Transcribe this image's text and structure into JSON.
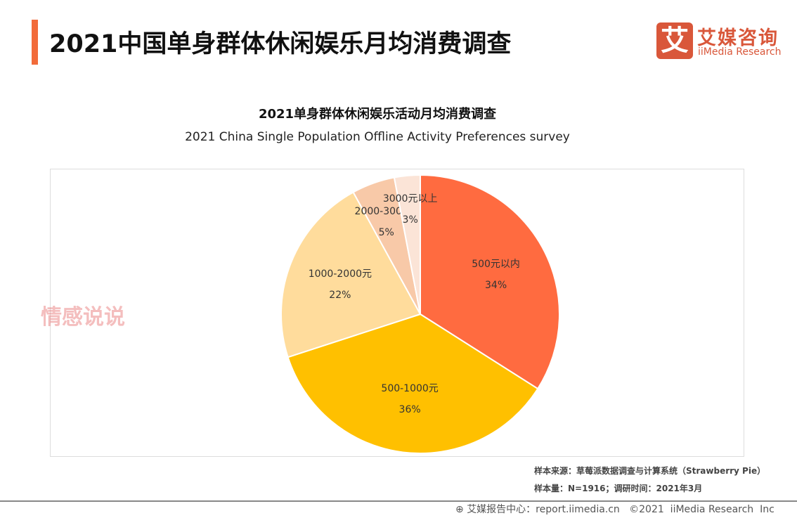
{
  "header": {
    "title": "2021中国单身群体休闲娱乐月均消费调查"
  },
  "logo": {
    "mark": "艾",
    "cn": "艾媒咨询",
    "en": "iiMedia Research",
    "color": "#D9573A"
  },
  "watermark": "情感说说",
  "chart_data": {
    "type": "pie",
    "title": "2021单身群体休闲娱乐活动月均消费调查",
    "subtitle": "2021 China Single Population Offline Activity Preferences survey",
    "slices": [
      {
        "label": "500元以内",
        "value": 34,
        "pct": "34%",
        "color": "#FF6B40"
      },
      {
        "label": "500-1000元",
        "value": 36,
        "pct": "36%",
        "color": "#FFC000"
      },
      {
        "label": "1000-2000元",
        "value": 22,
        "pct": "22%",
        "color": "#FFDC9C"
      },
      {
        "label": "2000-3000元",
        "value": 5,
        "pct": "5%",
        "color": "#F8C9A8"
      },
      {
        "label": "3000元以上",
        "value": 3,
        "pct": "3%",
        "color": "#FBE4D7"
      }
    ]
  },
  "notes": {
    "source": "样本来源：草莓派数据调查与计算系统（Strawberry Pie）",
    "sample": "样本量：N=1916；调研时间：2021年3月"
  },
  "footer": {
    "text": "艾媒报告中心：report.iimedia.cn   ©2021  iiMedia Research  Inc"
  }
}
